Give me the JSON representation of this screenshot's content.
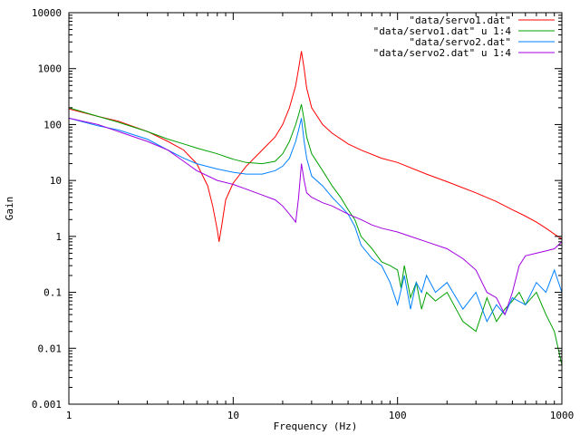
{
  "chart_data": {
    "type": "line",
    "xscale": "log",
    "yscale": "log",
    "xlim": [
      1,
      1000
    ],
    "ylim": [
      0.001,
      10000
    ],
    "xlabel": "Frequency (Hz)",
    "ylabel": "Gain",
    "legend_position": "top-right",
    "grid": false,
    "x_ticks": [
      {
        "value": 1,
        "label": "1"
      },
      {
        "value": 10,
        "label": "10"
      },
      {
        "value": 100,
        "label": "100"
      },
      {
        "value": 1000,
        "label": "1000"
      }
    ],
    "y_ticks": [
      {
        "value": 0.001,
        "label": "0.001"
      },
      {
        "value": 0.01,
        "label": "0.01"
      },
      {
        "value": 0.1,
        "label": "0.1"
      },
      {
        "value": 1,
        "label": "1"
      },
      {
        "value": 10,
        "label": "10"
      },
      {
        "value": 100,
        "label": "100"
      },
      {
        "value": 1000,
        "label": "1000"
      },
      {
        "value": 10000,
        "label": "10000"
      }
    ],
    "series": [
      {
        "name": "\"data/servo1.dat\"",
        "color": "#ff0000",
        "points": [
          [
            1,
            190
          ],
          [
            1.5,
            140
          ],
          [
            2,
            115
          ],
          [
            3,
            75
          ],
          [
            4,
            50
          ],
          [
            5,
            35
          ],
          [
            6,
            20
          ],
          [
            7,
            8
          ],
          [
            7.5,
            3.5
          ],
          [
            8,
            1.3
          ],
          [
            8.2,
            0.8
          ],
          [
            8.5,
            1.5
          ],
          [
            9,
            4.5
          ],
          [
            10,
            9
          ],
          [
            12,
            18
          ],
          [
            15,
            35
          ],
          [
            18,
            60
          ],
          [
            20,
            100
          ],
          [
            22,
            200
          ],
          [
            24,
            500
          ],
          [
            25,
            1000
          ],
          [
            26,
            2050
          ],
          [
            27,
            1000
          ],
          [
            28,
            450
          ],
          [
            30,
            200
          ],
          [
            35,
            100
          ],
          [
            40,
            70
          ],
          [
            50,
            45
          ],
          [
            60,
            35
          ],
          [
            80,
            25
          ],
          [
            100,
            21
          ],
          [
            150,
            13
          ],
          [
            200,
            9.5
          ],
          [
            300,
            6
          ],
          [
            400,
            4.2
          ],
          [
            500,
            3
          ],
          [
            600,
            2.3
          ],
          [
            700,
            1.8
          ],
          [
            800,
            1.4
          ],
          [
            900,
            1.1
          ],
          [
            1000,
            0.9
          ]
        ]
      },
      {
        "name": "\"data/servo1.dat\" u 1:4",
        "color": "#00a000",
        "points": [
          [
            1,
            200
          ],
          [
            1.5,
            140
          ],
          [
            2,
            110
          ],
          [
            3,
            75
          ],
          [
            4,
            55
          ],
          [
            5,
            45
          ],
          [
            6,
            38
          ],
          [
            8,
            30
          ],
          [
            10,
            24
          ],
          [
            12,
            21
          ],
          [
            15,
            20
          ],
          [
            18,
            22
          ],
          [
            20,
            30
          ],
          [
            22,
            50
          ],
          [
            24,
            100
          ],
          [
            25,
            150
          ],
          [
            26,
            230
          ],
          [
            27,
            120
          ],
          [
            28,
            60
          ],
          [
            30,
            30
          ],
          [
            35,
            15
          ],
          [
            40,
            8
          ],
          [
            45,
            5
          ],
          [
            50,
            3
          ],
          [
            55,
            2
          ],
          [
            60,
            1
          ],
          [
            70,
            0.6
          ],
          [
            80,
            0.35
          ],
          [
            90,
            0.3
          ],
          [
            100,
            0.25
          ],
          [
            105,
            0.12
          ],
          [
            110,
            0.3
          ],
          [
            120,
            0.08
          ],
          [
            130,
            0.15
          ],
          [
            140,
            0.05
          ],
          [
            150,
            0.1
          ],
          [
            170,
            0.07
          ],
          [
            200,
            0.1
          ],
          [
            250,
            0.03
          ],
          [
            300,
            0.02
          ],
          [
            350,
            0.08
          ],
          [
            400,
            0.03
          ],
          [
            450,
            0.05
          ],
          [
            500,
            0.07
          ],
          [
            550,
            0.1
          ],
          [
            600,
            0.06
          ],
          [
            700,
            0.1
          ],
          [
            800,
            0.04
          ],
          [
            900,
            0.02
          ],
          [
            1000,
            0.005
          ]
        ]
      },
      {
        "name": "\"data/servo2.dat\"",
        "color": "#0080ff",
        "points": [
          [
            1,
            130
          ],
          [
            1.5,
            95
          ],
          [
            2,
            80
          ],
          [
            3,
            55
          ],
          [
            4,
            35
          ],
          [
            5,
            25
          ],
          [
            6,
            20
          ],
          [
            8,
            16
          ],
          [
            10,
            14
          ],
          [
            12,
            13
          ],
          [
            15,
            13
          ],
          [
            18,
            15
          ],
          [
            20,
            18
          ],
          [
            22,
            25
          ],
          [
            24,
            50
          ],
          [
            25,
            80
          ],
          [
            26,
            130
          ],
          [
            27,
            50
          ],
          [
            28,
            25
          ],
          [
            30,
            12
          ],
          [
            35,
            8
          ],
          [
            40,
            5
          ],
          [
            45,
            3.5
          ],
          [
            50,
            2.5
          ],
          [
            55,
            1.5
          ],
          [
            60,
            0.7
          ],
          [
            70,
            0.4
          ],
          [
            80,
            0.3
          ],
          [
            90,
            0.15
          ],
          [
            100,
            0.06
          ],
          [
            110,
            0.2
          ],
          [
            120,
            0.05
          ],
          [
            130,
            0.15
          ],
          [
            140,
            0.1
          ],
          [
            150,
            0.2
          ],
          [
            170,
            0.1
          ],
          [
            200,
            0.15
          ],
          [
            250,
            0.05
          ],
          [
            300,
            0.1
          ],
          [
            350,
            0.03
          ],
          [
            400,
            0.06
          ],
          [
            450,
            0.04
          ],
          [
            500,
            0.08
          ],
          [
            600,
            0.06
          ],
          [
            700,
            0.15
          ],
          [
            800,
            0.1
          ],
          [
            900,
            0.25
          ],
          [
            1000,
            0.1
          ]
        ]
      },
      {
        "name": "\"data/servo2.dat\" u 1:4",
        "color": "#a000e0",
        "points": [
          [
            1,
            130
          ],
          [
            1.5,
            100
          ],
          [
            2,
            75
          ],
          [
            3,
            50
          ],
          [
            4,
            35
          ],
          [
            5,
            22
          ],
          [
            6,
            15
          ],
          [
            8,
            10
          ],
          [
            10,
            8.5
          ],
          [
            12,
            7
          ],
          [
            15,
            5.5
          ],
          [
            18,
            4.5
          ],
          [
            20,
            3.5
          ],
          [
            22,
            2.5
          ],
          [
            24,
            1.8
          ],
          [
            25,
            5
          ],
          [
            26,
            20
          ],
          [
            27,
            10
          ],
          [
            28,
            6
          ],
          [
            30,
            5
          ],
          [
            35,
            4
          ],
          [
            40,
            3.5
          ],
          [
            50,
            2.5
          ],
          [
            60,
            2
          ],
          [
            70,
            1.6
          ],
          [
            80,
            1.4
          ],
          [
            100,
            1.2
          ],
          [
            120,
            1
          ],
          [
            150,
            0.8
          ],
          [
            200,
            0.6
          ],
          [
            250,
            0.4
          ],
          [
            300,
            0.25
          ],
          [
            350,
            0.1
          ],
          [
            400,
            0.08
          ],
          [
            450,
            0.04
          ],
          [
            500,
            0.1
          ],
          [
            550,
            0.3
          ],
          [
            600,
            0.45
          ],
          [
            700,
            0.5
          ],
          [
            800,
            0.55
          ],
          [
            900,
            0.6
          ],
          [
            1000,
            0.8
          ]
        ]
      }
    ]
  }
}
